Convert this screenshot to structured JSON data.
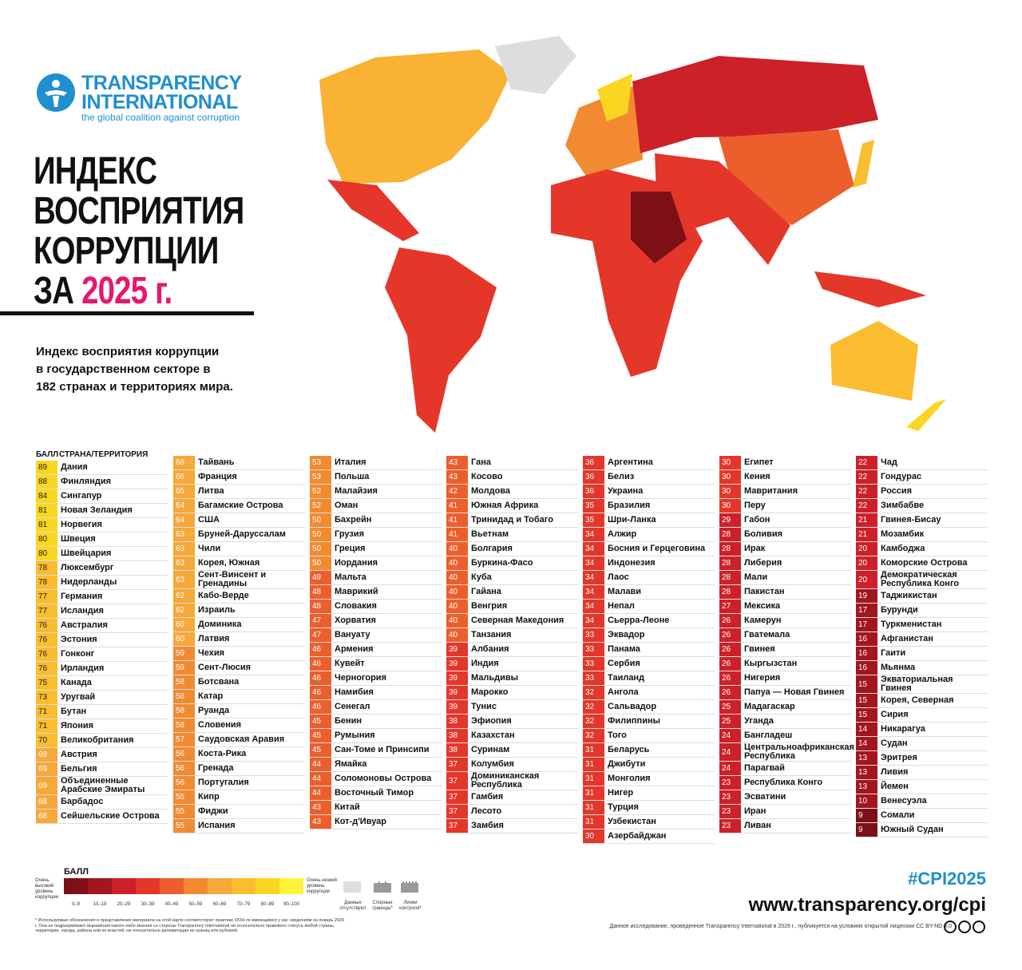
{
  "header": {
    "logo": [
      "TRANSPARENCY",
      "INTERNATIONAL"
    ],
    "tagline": "the global coalition against corruption",
    "title": [
      "ИНДЕКС",
      "ВОСПРИЯТИЯ",
      "КОРРУПЦИИ"
    ],
    "title_last": "ЗА",
    "year": "2025 г.",
    "subtitle": [
      "Индекс восприятия коррупции",
      "в государственном секторе в",
      "182 странах и территориях мира."
    ]
  },
  "table": {
    "header": {
      "score": "БАЛЛ",
      "country": "СТРАНА/ТЕРРИТОРИЯ"
    },
    "columns": [
      [
        [
          89,
          "Дания"
        ],
        [
          88,
          "Финляндия"
        ],
        [
          84,
          "Сингапур"
        ],
        [
          81,
          "Новая Зеландия"
        ],
        [
          81,
          "Норвегия"
        ],
        [
          80,
          "Швеция"
        ],
        [
          80,
          "Швейцария"
        ],
        [
          78,
          "Люксембург"
        ],
        [
          78,
          "Нидерланды"
        ],
        [
          77,
          "Германия"
        ],
        [
          77,
          "Исландия"
        ],
        [
          76,
          "Австралия"
        ],
        [
          76,
          "Эстония"
        ],
        [
          76,
          "Гонконг"
        ],
        [
          76,
          "Ирландия"
        ],
        [
          75,
          "Канада"
        ],
        [
          73,
          "Уругвай"
        ],
        [
          71,
          "Бутан"
        ],
        [
          71,
          "Япония"
        ],
        [
          70,
          "Великобритания"
        ],
        [
          69,
          "Австрия"
        ],
        [
          69,
          "Бельгия"
        ],
        [
          69,
          "Объединенные Арабские Эмираты"
        ],
        [
          68,
          "Барбадос"
        ],
        [
          68,
          "Сейшельские Острова"
        ]
      ],
      [
        [
          68,
          "Тайвань"
        ],
        [
          66,
          "Франция"
        ],
        [
          65,
          "Литва"
        ],
        [
          64,
          "Багамские Острова"
        ],
        [
          64,
          "США"
        ],
        [
          63,
          "Бруней-Даруссалам"
        ],
        [
          63,
          "Чили"
        ],
        [
          63,
          "Корея, Южная"
        ],
        [
          63,
          "Сент-Винсент и Гренадины"
        ],
        [
          62,
          "Кабо-Верде"
        ],
        [
          62,
          "Израиль"
        ],
        [
          60,
          "Доминика"
        ],
        [
          60,
          "Латвия"
        ],
        [
          59,
          "Чехия"
        ],
        [
          59,
          "Сент-Люсия"
        ],
        [
          58,
          "Ботсвана"
        ],
        [
          58,
          "Катар"
        ],
        [
          58,
          "Руанда"
        ],
        [
          58,
          "Словения"
        ],
        [
          57,
          "Саудовская Аравия"
        ],
        [
          56,
          "Коста-Рика"
        ],
        [
          56,
          "Гренада"
        ],
        [
          56,
          "Португалия"
        ],
        [
          55,
          "Кипр"
        ],
        [
          55,
          "Фиджи"
        ],
        [
          55,
          "Испания"
        ]
      ],
      [
        [
          53,
          "Италия"
        ],
        [
          53,
          "Польша"
        ],
        [
          52,
          "Малайзия"
        ],
        [
          52,
          "Оман"
        ],
        [
          50,
          "Бахрейн"
        ],
        [
          50,
          "Грузия"
        ],
        [
          50,
          "Греция"
        ],
        [
          50,
          "Иордания"
        ],
        [
          49,
          "Мальта"
        ],
        [
          48,
          "Маврикий"
        ],
        [
          48,
          "Словакия"
        ],
        [
          47,
          "Хорватия"
        ],
        [
          47,
          "Вануату"
        ],
        [
          46,
          "Армения"
        ],
        [
          46,
          "Кувейт"
        ],
        [
          46,
          "Черногория"
        ],
        [
          46,
          "Намибия"
        ],
        [
          46,
          "Сенегал"
        ],
        [
          45,
          "Бенин"
        ],
        [
          45,
          "Румыния"
        ],
        [
          45,
          "Сан-Томе и Принсипи"
        ],
        [
          44,
          "Ямайка"
        ],
        [
          44,
          "Соломоновы Острова"
        ],
        [
          44,
          "Восточный Тимор"
        ],
        [
          43,
          "Китай"
        ],
        [
          43,
          "Кот-д'Ивуар"
        ]
      ],
      [
        [
          43,
          "Гана"
        ],
        [
          43,
          "Косово"
        ],
        [
          42,
          "Молдова"
        ],
        [
          41,
          "Южная Африка"
        ],
        [
          41,
          "Тринидад и Тобаго"
        ],
        [
          41,
          "Вьетнам"
        ],
        [
          40,
          "Болгария"
        ],
        [
          40,
          "Буркина-Фасо"
        ],
        [
          40,
          "Куба"
        ],
        [
          40,
          "Гайана"
        ],
        [
          40,
          "Венгрия"
        ],
        [
          40,
          "Северная Македония"
        ],
        [
          40,
          "Танзания"
        ],
        [
          39,
          "Албания"
        ],
        [
          39,
          "Индия"
        ],
        [
          39,
          "Мальдивы"
        ],
        [
          39,
          "Марокко"
        ],
        [
          39,
          "Тунис"
        ],
        [
          38,
          "Эфиопия"
        ],
        [
          38,
          "Казахстан"
        ],
        [
          38,
          "Суринам"
        ],
        [
          37,
          "Колумбия"
        ],
        [
          37,
          "Доминиканская Республика"
        ],
        [
          37,
          "Гамбия"
        ],
        [
          37,
          "Лесото"
        ],
        [
          37,
          "Замбия"
        ]
      ],
      [
        [
          36,
          "Аргентина"
        ],
        [
          36,
          "Белиз"
        ],
        [
          36,
          "Украина"
        ],
        [
          35,
          "Бразилия"
        ],
        [
          35,
          "Шри-Ланка"
        ],
        [
          34,
          "Алжир"
        ],
        [
          34,
          "Босния и Герцеговина"
        ],
        [
          34,
          "Индонезия"
        ],
        [
          34,
          "Лаос"
        ],
        [
          34,
          "Малави"
        ],
        [
          34,
          "Непал"
        ],
        [
          34,
          "Сьерра-Леоне"
        ],
        [
          33,
          "Эквадор"
        ],
        [
          33,
          "Панама"
        ],
        [
          33,
          "Сербия"
        ],
        [
          33,
          "Таиланд"
        ],
        [
          32,
          "Ангола"
        ],
        [
          32,
          "Сальвадор"
        ],
        [
          32,
          "Филиппины"
        ],
        [
          32,
          "Того"
        ],
        [
          31,
          "Беларусь"
        ],
        [
          31,
          "Джибути"
        ],
        [
          31,
          "Монголия"
        ],
        [
          31,
          "Нигер"
        ],
        [
          31,
          "Турция"
        ],
        [
          31,
          "Узбекистан"
        ],
        [
          30,
          "Азербайджан"
        ]
      ],
      [
        [
          30,
          "Египет"
        ],
        [
          30,
          "Кения"
        ],
        [
          30,
          "Мавритания"
        ],
        [
          30,
          "Перу"
        ],
        [
          29,
          "Габон"
        ],
        [
          28,
          "Боливия"
        ],
        [
          28,
          "Ирак"
        ],
        [
          28,
          "Либерия"
        ],
        [
          28,
          "Мали"
        ],
        [
          28,
          "Пакистан"
        ],
        [
          27,
          "Мексика"
        ],
        [
          26,
          "Камерун"
        ],
        [
          26,
          "Гватемала"
        ],
        [
          26,
          "Гвинея"
        ],
        [
          26,
          "Кыргызстан"
        ],
        [
          26,
          "Нигерия"
        ],
        [
          26,
          "Папуа — Новая Гвинея"
        ],
        [
          25,
          "Мадагаскар"
        ],
        [
          25,
          "Уганда"
        ],
        [
          24,
          "Бангладеш"
        ],
        [
          24,
          "Центральноафриканская Республика"
        ],
        [
          24,
          "Парагвай"
        ],
        [
          23,
          "Республика Конго"
        ],
        [
          23,
          "Эсватини"
        ],
        [
          23,
          "Иран"
        ],
        [
          23,
          "Ливан"
        ]
      ],
      [
        [
          22,
          "Чад"
        ],
        [
          22,
          "Гондурас"
        ],
        [
          22,
          "Россия"
        ],
        [
          22,
          "Зимбабве"
        ],
        [
          21,
          "Гвинея-Бисау"
        ],
        [
          21,
          "Мозамбик"
        ],
        [
          20,
          "Камбоджа"
        ],
        [
          20,
          "Коморские Острова"
        ],
        [
          20,
          "Демократическая Республика Конго"
        ],
        [
          19,
          "Таджикистан"
        ],
        [
          17,
          "Бурунди"
        ],
        [
          17,
          "Туркменистан"
        ],
        [
          16,
          "Афганистан"
        ],
        [
          16,
          "Гаити"
        ],
        [
          16,
          "Мьянма"
        ],
        [
          15,
          "Экваториальная Гвинея"
        ],
        [
          15,
          "Корея, Северная"
        ],
        [
          15,
          "Сирия"
        ],
        [
          14,
          "Никарагуа"
        ],
        [
          14,
          "Судан"
        ],
        [
          13,
          "Эритрея"
        ],
        [
          13,
          "Ливия"
        ],
        [
          13,
          "Йемен"
        ],
        [
          10,
          "Венесуэла"
        ],
        [
          9,
          "Сомали"
        ],
        [
          9,
          "Южный Судан"
        ]
      ]
    ]
  },
  "legend": {
    "title": "БАЛЛ",
    "low_end": "Очень высокий уровень коррупции",
    "high_end": "Очень низкий уровень коррупции",
    "bins": [
      {
        "label": "0–9",
        "color": "#7d0f17"
      },
      {
        "label": "10–19",
        "color": "#a3161f"
      },
      {
        "label": "20–29",
        "color": "#cc2129"
      },
      {
        "label": "30–39",
        "color": "#e5362a"
      },
      {
        "label": "40–49",
        "color": "#ec5f2c"
      },
      {
        "label": "50–59",
        "color": "#f28a31"
      },
      {
        "label": "60–69",
        "color": "#f6a83a"
      },
      {
        "label": "70–79",
        "color": "#f9bd2f"
      },
      {
        "label": "80–89",
        "color": "#fbd621"
      },
      {
        "label": "90–100",
        "color": "#fff23a"
      }
    ],
    "no_data": "Данные отсутствуют",
    "disputed": "Спорные границы*",
    "control": "Линии контроля*"
  },
  "footer": {
    "note": "* Используемые обозначения и представление материала на этой карте соответствуют практике ООН по имеющимся у нас сведениям на январь 2026 г. Они не подразумевают выражения какого-либо мнения со стороны Transparency International ни относительно правового статуса любой страны, территории, города, района или их властей, ни относительно делимитации их границ или рубежей.",
    "hashtag": "#CPI2025",
    "url": "www.transparency.org/cpi",
    "license": "Данное исследование, проведенное Transparency International в 2026 г., публикуется на условиях открытой лицензии CC BY-ND 4.0"
  }
}
